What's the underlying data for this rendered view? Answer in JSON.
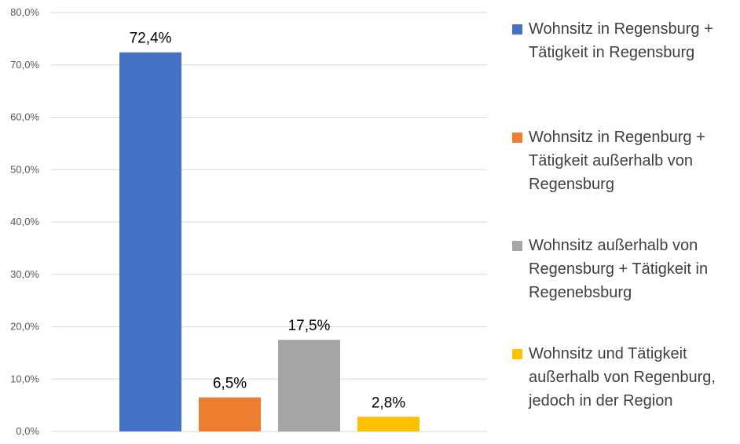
{
  "chart_data": {
    "type": "bar",
    "categories": [
      "Wohnsitz in Regensburg + Tätigkeit in Regensburg",
      "Wohnsitz in Regenburg + Tätigkeit außerhalb von Regensburg",
      "Wohnsitz außerhalb von Regensburg + Tätigkeit in Regenebsburg",
      "Wohnsitz und Tätigkeit außerhalb von Regenburg, jedoch in der Region"
    ],
    "values": [
      72.4,
      6.5,
      17.5,
      2.8
    ],
    "value_labels": [
      "72,4%",
      "6,5%",
      "17,5%",
      "2,8%"
    ],
    "colors": [
      "#4472C4",
      "#ED7D31",
      "#A5A5A5",
      "#FFC000"
    ],
    "title": "",
    "xlabel": "",
    "ylabel": "",
    "ylim": [
      0,
      80
    ],
    "yticks": [
      0,
      10,
      20,
      30,
      40,
      50,
      60,
      70,
      80
    ],
    "ytick_labels": [
      "0,0%",
      "10,0%",
      "20,0%",
      "30,0%",
      "40,0%",
      "50,0%",
      "60,0%",
      "70,0%",
      "80,0%"
    ],
    "grid": true,
    "gridline_color": "#D9D9D9",
    "legend_position": "right"
  },
  "legend": {
    "items": [
      {
        "label": "Wohnsitz in Regensburg + Tätigkeit in Regensburg",
        "color": "#4472C4"
      },
      {
        "label": "Wohnsitz in Regenburg + Tätigkeit außerhalb von Regensburg",
        "color": "#ED7D31"
      },
      {
        "label": "Wohnsitz außerhalb von Regensburg + Tätigkeit in Regenebsburg",
        "color": "#A5A5A5"
      },
      {
        "label": "Wohnsitz und Tätigkeit außerhalb von Regenburg, jedoch in der Region",
        "color": "#FFC000"
      }
    ]
  }
}
